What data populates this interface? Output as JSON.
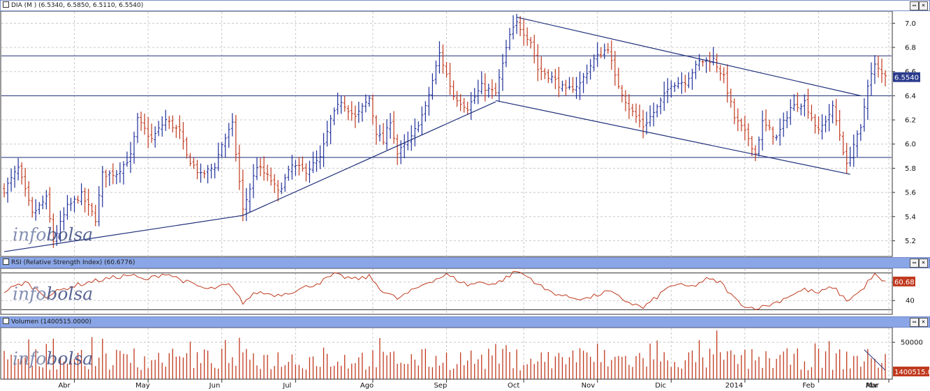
{
  "price_panel": {
    "title": "DIA (M ) (6.5340, 6.5850, 6.5110, 6.5540)",
    "last_label": "6.5540",
    "watermark_a": "info",
    "watermark_b": "bolsa"
  },
  "rsi_panel": {
    "title": "RSI (Relative Strength Index) (60.6776)",
    "last_label": "60.68",
    "watermark_a": "info",
    "watermark_b": "bolsa"
  },
  "volume_panel": {
    "title": "Volumen (1400515.0000)",
    "last_label": "1400515.0",
    "watermark_a": "info",
    "watermark_b": "bolsa"
  },
  "window_buttons": {
    "minimize": "▭",
    "close": "×"
  },
  "colors": {
    "up": "#1f2f9a",
    "down": "#c0391e",
    "line": "#1f2f7a",
    "grid": "#c8c8c8",
    "title_blue": "#8aa6e6",
    "label_bg": "#2a3b8c",
    "label_red": "#c0391e"
  },
  "chart_data": [
    {
      "type": "ohlc",
      "yticks": [
        "5.2",
        "5.4",
        "5.6",
        "5.8",
        "6.0",
        "6.2",
        "6.4",
        "6.6",
        "6.8",
        "7.0"
      ],
      "ylim": [
        5.07,
        7.1
      ],
      "months": [
        "Abr",
        "May",
        "Jun",
        "Jul",
        "Ago",
        "Sep",
        "Oct",
        "Nov",
        "Dic",
        "2014",
        "Feb",
        "Mar",
        "Abr"
      ],
      "levels": [
        6.73,
        6.4,
        5.89
      ],
      "trend_segments": [
        [
          [
            0,
            5.11
          ],
          [
            68,
            5.41
          ]
        ],
        [
          [
            68,
            5.41
          ],
          [
            140,
            6.35
          ]
        ],
        [
          [
            146,
            7.05
          ],
          [
            244,
            6.4
          ]
        ],
        [
          [
            140,
            6.36
          ],
          [
            241,
            5.75
          ]
        ]
      ],
      "anchors": [
        [
          0,
          5.62
        ],
        [
          4,
          5.8
        ],
        [
          8,
          5.42
        ],
        [
          12,
          5.55
        ],
        [
          14,
          5.2
        ],
        [
          18,
          5.48
        ],
        [
          22,
          5.58
        ],
        [
          26,
          5.38
        ],
        [
          28,
          5.75
        ],
        [
          32,
          5.76
        ],
        [
          36,
          5.9
        ],
        [
          38,
          6.2
        ],
        [
          42,
          6.04
        ],
        [
          46,
          6.2
        ],
        [
          50,
          6.1
        ],
        [
          52,
          5.9
        ],
        [
          56,
          5.74
        ],
        [
          60,
          5.82
        ],
        [
          62,
          6.0
        ],
        [
          65,
          6.16
        ],
        [
          68,
          5.45
        ],
        [
          72,
          5.82
        ],
        [
          76,
          5.7
        ],
        [
          78,
          5.6
        ],
        [
          82,
          5.82
        ],
        [
          86,
          5.78
        ],
        [
          90,
          5.88
        ],
        [
          93,
          6.2
        ],
        [
          96,
          6.36
        ],
        [
          100,
          6.22
        ],
        [
          104,
          6.38
        ],
        [
          106,
          6.1
        ],
        [
          108,
          6.02
        ],
        [
          110,
          6.2
        ],
        [
          112,
          5.92
        ],
        [
          116,
          6.05
        ],
        [
          120,
          6.3
        ],
        [
          124,
          6.75
        ],
        [
          128,
          6.4
        ],
        [
          132,
          6.3
        ],
        [
          136,
          6.48
        ],
        [
          140,
          6.42
        ],
        [
          144,
          6.9
        ],
        [
          146,
          7.0
        ],
        [
          150,
          6.85
        ],
        [
          152,
          6.62
        ],
        [
          156,
          6.55
        ],
        [
          160,
          6.44
        ],
        [
          164,
          6.5
        ],
        [
          168,
          6.7
        ],
        [
          172,
          6.8
        ],
        [
          174,
          6.55
        ],
        [
          178,
          6.3
        ],
        [
          182,
          6.15
        ],
        [
          186,
          6.3
        ],
        [
          190,
          6.5
        ],
        [
          194,
          6.52
        ],
        [
          198,
          6.68
        ],
        [
          202,
          6.7
        ],
        [
          205,
          6.55
        ],
        [
          208,
          6.22
        ],
        [
          212,
          6.05
        ],
        [
          214,
          5.92
        ],
        [
          216,
          6.18
        ],
        [
          220,
          6.05
        ],
        [
          224,
          6.3
        ],
        [
          228,
          6.35
        ],
        [
          232,
          6.1
        ],
        [
          234,
          6.2
        ],
        [
          236,
          6.3
        ],
        [
          238,
          6.08
        ],
        [
          240,
          5.82
        ],
        [
          242,
          6.0
        ],
        [
          244,
          6.12
        ],
        [
          246,
          6.5
        ],
        [
          248,
          6.65
        ],
        [
          250,
          6.58
        ]
      ],
      "bars_count": 252,
      "last": 6.554
    },
    {
      "type": "line",
      "yticks": [
        "40",
        "60"
      ],
      "ylim": [
        25,
        75
      ],
      "levels": [
        70,
        30
      ],
      "anchors": [
        [
          0,
          50
        ],
        [
          6,
          60
        ],
        [
          12,
          45
        ],
        [
          18,
          54
        ],
        [
          24,
          60
        ],
        [
          30,
          64
        ],
        [
          36,
          68
        ],
        [
          40,
          62
        ],
        [
          46,
          70
        ],
        [
          52,
          60
        ],
        [
          58,
          52
        ],
        [
          64,
          57
        ],
        [
          68,
          38
        ],
        [
          72,
          49
        ],
        [
          78,
          46
        ],
        [
          84,
          52
        ],
        [
          90,
          60
        ],
        [
          94,
          68
        ],
        [
          100,
          63
        ],
        [
          104,
          66
        ],
        [
          108,
          50
        ],
        [
          112,
          42
        ],
        [
          116,
          50
        ],
        [
          120,
          59
        ],
        [
          126,
          68
        ],
        [
          132,
          57
        ],
        [
          136,
          60
        ],
        [
          140,
          58
        ],
        [
          146,
          72
        ],
        [
          150,
          64
        ],
        [
          154,
          52
        ],
        [
          160,
          44
        ],
        [
          166,
          42
        ],
        [
          172,
          50
        ],
        [
          178,
          38
        ],
        [
          182,
          32
        ],
        [
          186,
          44
        ],
        [
          190,
          57
        ],
        [
          196,
          55
        ],
        [
          200,
          63
        ],
        [
          204,
          60
        ],
        [
          208,
          42
        ],
        [
          212,
          32
        ],
        [
          216,
          33
        ],
        [
          220,
          38
        ],
        [
          224,
          46
        ],
        [
          228,
          52
        ],
        [
          232,
          48
        ],
        [
          236,
          55
        ],
        [
          240,
          40
        ],
        [
          244,
          50
        ],
        [
          246,
          60
        ],
        [
          248,
          68
        ],
        [
          250,
          60.68
        ]
      ],
      "last": 60.68
    },
    {
      "type": "bar",
      "yticks": [
        "50000"
      ],
      "ylim": [
        0,
        70000
      ],
      "trend_segment": [
        [
          245,
          40000
        ],
        [
          251,
          12000
        ]
      ],
      "last": 1400515.0
    }
  ]
}
